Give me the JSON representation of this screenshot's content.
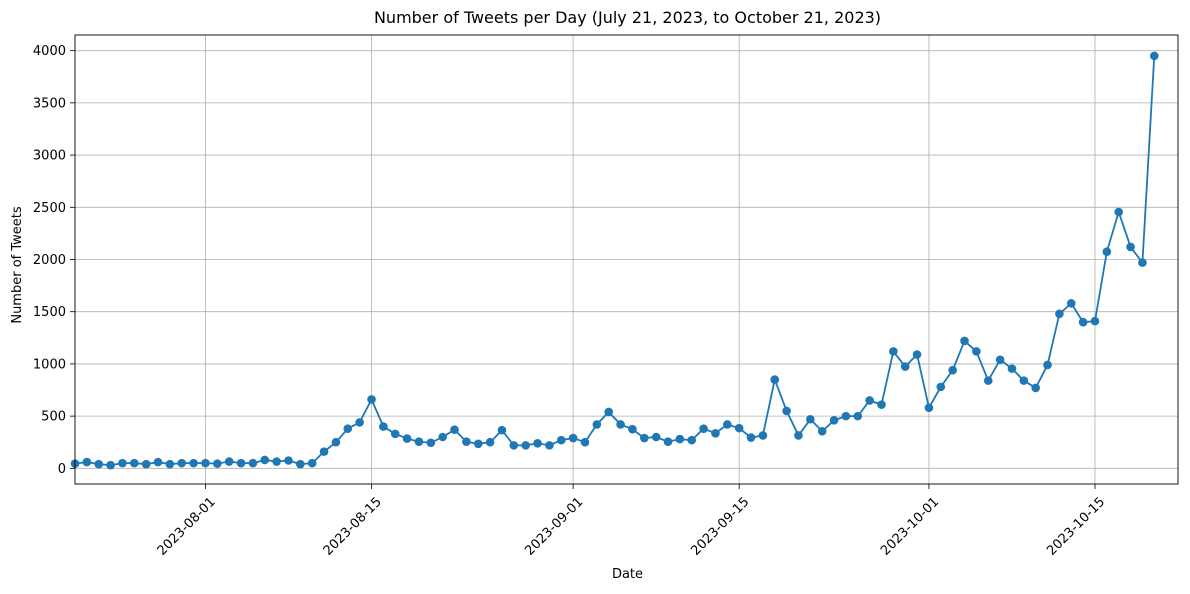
{
  "chart_data": {
    "type": "line",
    "title": "Number of Tweets per Day (July 21, 2023, to October 21, 2023)",
    "xlabel": "Date",
    "ylabel": "Number of Tweets",
    "x_start": "2023-07-21",
    "x_end": "2023-10-21",
    "xlim": [
      "2023-07-21",
      "2023-10-22"
    ],
    "ylim": [
      -150,
      4150
    ],
    "grid": true,
    "legend": "none",
    "line_color": "#1f77b4",
    "marker": "circle",
    "x_ticks": [
      "2023-08-01",
      "2023-08-15",
      "2023-09-01",
      "2023-09-15",
      "2023-10-01",
      "2023-10-15"
    ],
    "y_ticks": [
      0,
      500,
      1000,
      1500,
      2000,
      2500,
      3000,
      3500,
      4000
    ],
    "series": [
      {
        "values": [
          45,
          60,
          40,
          30,
          50,
          50,
          40,
          60,
          40,
          50,
          50,
          50,
          45,
          65,
          50,
          50,
          80,
          65,
          75,
          40,
          50,
          160,
          250,
          380,
          440,
          660,
          400,
          330,
          285,
          255,
          245,
          300,
          370,
          255,
          235,
          250,
          365,
          220,
          220,
          240,
          220,
          270,
          290,
          250,
          420,
          540,
          420,
          375,
          290,
          300,
          255,
          280,
          270,
          380,
          335,
          420,
          385,
          295,
          315,
          850,
          550,
          315,
          470,
          355,
          460,
          500,
          500,
          650,
          610,
          1120,
          975,
          1090,
          580,
          780,
          940,
          1220,
          1120,
          840,
          1040,
          955,
          840,
          770,
          990,
          1480,
          1580,
          1400,
          1410,
          2075,
          2455,
          2120,
          1970,
          3950
        ]
      }
    ]
  }
}
